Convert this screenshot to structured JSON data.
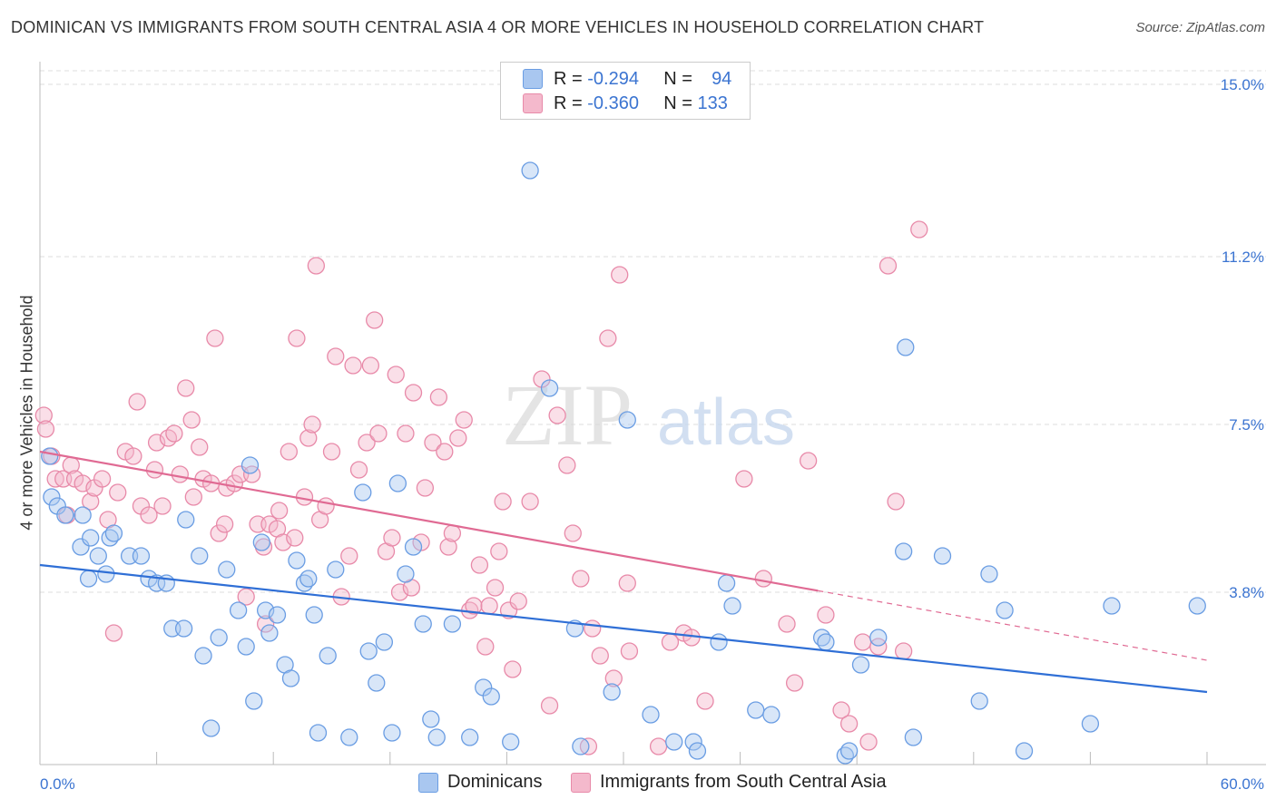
{
  "title": "DOMINICAN VS IMMIGRANTS FROM SOUTH CENTRAL ASIA 4 OR MORE VEHICLES IN HOUSEHOLD CORRELATION CHART",
  "source": "Source: ZipAtlas.com",
  "watermark": {
    "zip": "ZIP",
    "atlas": "atlas"
  },
  "legend_box": {
    "rows": [
      {
        "r_label": "R =",
        "r_value": "-0.294",
        "n_label": "N =",
        "n_value": "94"
      },
      {
        "r_label": "R =",
        "r_value": "-0.360",
        "n_label": "N =",
        "n_value": "133"
      }
    ]
  },
  "chart_data": {
    "type": "scatter",
    "ylabel": "4 or more Vehicles in Household",
    "xlim": [
      0,
      60
    ],
    "ylim": [
      0,
      15.3
    ],
    "x_tick_labels": [
      "0.0%",
      "60.0%"
    ],
    "y_ticks": [
      3.8,
      7.5,
      11.2,
      15.0
    ],
    "y_tick_labels": [
      "3.8%",
      "7.5%",
      "11.2%",
      "15.0%"
    ],
    "grid": true,
    "legend_position": "top-center",
    "series": [
      {
        "name": "Dominicans",
        "color": "#6a9de3",
        "fill": "#a9c7f0",
        "trend": {
          "x0": 0,
          "y0": 4.4,
          "x1": 60,
          "y1": 1.6,
          "dashed_from": null
        },
        "points": [
          [
            0.5,
            6.8
          ],
          [
            0.6,
            5.9
          ],
          [
            0.9,
            5.7
          ],
          [
            1.3,
            5.5
          ],
          [
            2.2,
            5.5
          ],
          [
            2.1,
            4.8
          ],
          [
            2.6,
            5.0
          ],
          [
            3.0,
            4.6
          ],
          [
            3.6,
            5.0
          ],
          [
            3.8,
            5.1
          ],
          [
            3.4,
            4.2
          ],
          [
            2.5,
            4.1
          ],
          [
            4.6,
            4.6
          ],
          [
            5.2,
            4.6
          ],
          [
            5.6,
            4.1
          ],
          [
            6.0,
            4.0
          ],
          [
            6.5,
            4.0
          ],
          [
            6.8,
            3.0
          ],
          [
            7.4,
            3.0
          ],
          [
            7.5,
            5.4
          ],
          [
            8.2,
            4.6
          ],
          [
            8.4,
            2.4
          ],
          [
            8.8,
            0.8
          ],
          [
            9.2,
            2.8
          ],
          [
            9.6,
            4.3
          ],
          [
            10.2,
            3.4
          ],
          [
            10.6,
            2.6
          ],
          [
            10.8,
            6.6
          ],
          [
            11.0,
            1.4
          ],
          [
            11.4,
            4.9
          ],
          [
            11.6,
            3.4
          ],
          [
            11.8,
            2.9
          ],
          [
            12.2,
            3.3
          ],
          [
            12.6,
            2.2
          ],
          [
            12.9,
            1.9
          ],
          [
            13.2,
            4.5
          ],
          [
            13.6,
            4.0
          ],
          [
            13.8,
            4.1
          ],
          [
            14.1,
            3.3
          ],
          [
            14.3,
            0.7
          ],
          [
            14.8,
            2.4
          ],
          [
            15.2,
            4.3
          ],
          [
            15.9,
            0.6
          ],
          [
            16.6,
            6.0
          ],
          [
            16.9,
            2.5
          ],
          [
            17.3,
            1.8
          ],
          [
            17.7,
            2.7
          ],
          [
            18.1,
            0.7
          ],
          [
            18.4,
            6.2
          ],
          [
            18.8,
            4.2
          ],
          [
            19.2,
            4.8
          ],
          [
            19.7,
            3.1
          ],
          [
            20.1,
            1.0
          ],
          [
            20.4,
            0.6
          ],
          [
            21.2,
            3.1
          ],
          [
            22.1,
            0.6
          ],
          [
            22.8,
            1.7
          ],
          [
            23.2,
            1.5
          ],
          [
            24.2,
            0.5
          ],
          [
            25.2,
            13.1
          ],
          [
            26.2,
            8.3
          ],
          [
            27.5,
            3.0
          ],
          [
            27.8,
            0.4
          ],
          [
            29.4,
            1.6
          ],
          [
            30.2,
            7.6
          ],
          [
            31.4,
            1.1
          ],
          [
            32.6,
            0.5
          ],
          [
            33.6,
            0.5
          ],
          [
            33.8,
            0.3
          ],
          [
            34.9,
            2.7
          ],
          [
            35.3,
            4.0
          ],
          [
            35.6,
            3.5
          ],
          [
            36.8,
            1.2
          ],
          [
            37.6,
            1.1
          ],
          [
            40.2,
            2.8
          ],
          [
            40.4,
            2.7
          ],
          [
            41.4,
            0.2
          ],
          [
            41.6,
            0.3
          ],
          [
            42.2,
            2.2
          ],
          [
            43.1,
            2.8
          ],
          [
            44.4,
            4.7
          ],
          [
            44.5,
            9.2
          ],
          [
            44.9,
            0.6
          ],
          [
            46.4,
            4.6
          ],
          [
            48.3,
            1.4
          ],
          [
            48.8,
            4.2
          ],
          [
            49.6,
            3.4
          ],
          [
            50.6,
            0.3
          ],
          [
            54.0,
            0.9
          ],
          [
            55.1,
            3.5
          ],
          [
            59.5,
            3.5
          ]
        ]
      },
      {
        "name": "Immigrants from South Central Asia",
        "color": "#e88aa9",
        "fill": "#f4b9cc",
        "trend": {
          "x0": 0,
          "y0": 6.9,
          "x1": 60,
          "y1": 2.3,
          "dashed_from": 40
        },
        "points": [
          [
            0.2,
            7.7
          ],
          [
            0.3,
            7.4
          ],
          [
            0.6,
            6.8
          ],
          [
            0.8,
            6.3
          ],
          [
            1.2,
            6.3
          ],
          [
            1.4,
            5.5
          ],
          [
            1.6,
            6.6
          ],
          [
            1.8,
            6.3
          ],
          [
            2.2,
            6.2
          ],
          [
            2.6,
            5.8
          ],
          [
            2.8,
            6.1
          ],
          [
            3.2,
            6.3
          ],
          [
            3.5,
            5.4
          ],
          [
            3.8,
            2.9
          ],
          [
            4.0,
            6.0
          ],
          [
            4.4,
            6.9
          ],
          [
            4.8,
            6.8
          ],
          [
            5.0,
            8.0
          ],
          [
            5.2,
            5.7
          ],
          [
            5.6,
            5.5
          ],
          [
            5.9,
            6.5
          ],
          [
            6.0,
            7.1
          ],
          [
            6.3,
            5.7
          ],
          [
            6.6,
            7.2
          ],
          [
            6.9,
            7.3
          ],
          [
            7.2,
            6.4
          ],
          [
            7.5,
            8.3
          ],
          [
            7.8,
            7.6
          ],
          [
            7.9,
            5.9
          ],
          [
            8.2,
            7.0
          ],
          [
            8.4,
            6.3
          ],
          [
            8.8,
            6.2
          ],
          [
            9.0,
            9.4
          ],
          [
            9.2,
            5.1
          ],
          [
            9.5,
            5.3
          ],
          [
            9.6,
            6.1
          ],
          [
            10.0,
            6.2
          ],
          [
            10.3,
            6.4
          ],
          [
            10.6,
            3.7
          ],
          [
            10.9,
            6.4
          ],
          [
            11.2,
            5.3
          ],
          [
            11.5,
            4.8
          ],
          [
            11.6,
            3.1
          ],
          [
            11.8,
            5.3
          ],
          [
            12.2,
            5.2
          ],
          [
            12.3,
            5.6
          ],
          [
            12.5,
            4.9
          ],
          [
            12.8,
            6.9
          ],
          [
            13.1,
            5.0
          ],
          [
            13.2,
            9.4
          ],
          [
            13.6,
            5.9
          ],
          [
            13.8,
            7.2
          ],
          [
            14.0,
            7.5
          ],
          [
            14.2,
            11.0
          ],
          [
            14.4,
            5.4
          ],
          [
            14.7,
            5.7
          ],
          [
            15.0,
            6.9
          ],
          [
            15.2,
            9.0
          ],
          [
            15.5,
            3.7
          ],
          [
            15.9,
            4.6
          ],
          [
            16.1,
            8.8
          ],
          [
            16.4,
            6.5
          ],
          [
            16.8,
            7.1
          ],
          [
            17.0,
            8.8
          ],
          [
            17.2,
            9.8
          ],
          [
            17.4,
            7.3
          ],
          [
            17.8,
            4.7
          ],
          [
            18.1,
            5.0
          ],
          [
            18.3,
            8.6
          ],
          [
            18.5,
            3.8
          ],
          [
            18.8,
            7.3
          ],
          [
            19.1,
            3.9
          ],
          [
            19.2,
            8.2
          ],
          [
            19.6,
            4.9
          ],
          [
            19.8,
            6.1
          ],
          [
            20.2,
            7.1
          ],
          [
            20.5,
            8.1
          ],
          [
            20.8,
            6.9
          ],
          [
            21.0,
            4.8
          ],
          [
            21.2,
            5.1
          ],
          [
            21.5,
            7.2
          ],
          [
            21.8,
            7.6
          ],
          [
            22.1,
            3.4
          ],
          [
            22.3,
            3.5
          ],
          [
            22.6,
            4.4
          ],
          [
            22.9,
            2.6
          ],
          [
            23.1,
            3.5
          ],
          [
            23.4,
            3.9
          ],
          [
            23.6,
            4.7
          ],
          [
            23.8,
            5.8
          ],
          [
            24.1,
            3.4
          ],
          [
            24.3,
            2.1
          ],
          [
            24.6,
            3.6
          ],
          [
            25.2,
            5.8
          ],
          [
            25.8,
            8.5
          ],
          [
            26.2,
            1.3
          ],
          [
            26.6,
            7.7
          ],
          [
            27.1,
            6.6
          ],
          [
            27.4,
            5.1
          ],
          [
            27.8,
            4.1
          ],
          [
            28.2,
            0.4
          ],
          [
            28.4,
            3.0
          ],
          [
            28.8,
            2.4
          ],
          [
            29.2,
            9.4
          ],
          [
            29.5,
            1.9
          ],
          [
            29.8,
            10.8
          ],
          [
            30.2,
            4.0
          ],
          [
            30.3,
            2.5
          ],
          [
            31.8,
            0.4
          ],
          [
            32.4,
            2.7
          ],
          [
            33.1,
            2.9
          ],
          [
            33.5,
            2.8
          ],
          [
            34.2,
            1.4
          ],
          [
            36.2,
            6.3
          ],
          [
            37.2,
            4.1
          ],
          [
            38.4,
            3.1
          ],
          [
            38.8,
            1.8
          ],
          [
            39.5,
            6.7
          ],
          [
            40.4,
            3.3
          ],
          [
            41.2,
            1.2
          ],
          [
            41.6,
            0.9
          ],
          [
            42.3,
            2.7
          ],
          [
            42.6,
            0.5
          ],
          [
            43.1,
            2.6
          ],
          [
            43.6,
            11.0
          ],
          [
            44.0,
            5.8
          ],
          [
            44.4,
            2.5
          ],
          [
            45.2,
            11.8
          ]
        ]
      }
    ]
  },
  "bottom_legend": [
    {
      "label": "Dominicans"
    },
    {
      "label": "Immigrants from South Central Asia"
    }
  ],
  "colors": {
    "blue_line": "#2f6fd6",
    "pink_line": "#e06a93",
    "tick_label": "#3b74d1",
    "grid": "#dddddd"
  }
}
